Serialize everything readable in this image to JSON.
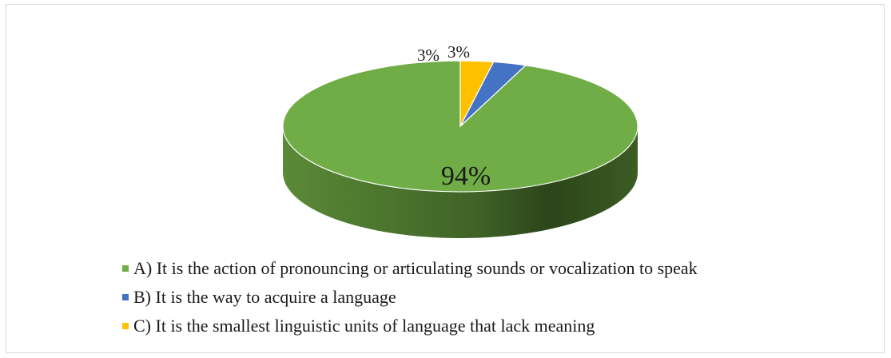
{
  "chart_data": {
    "type": "pie",
    "style": "3d",
    "categories": [
      "A) It is the action of pronouncing or articulating sounds or vocalization to speak",
      "B) It is the way to acquire a language",
      "C) It is the smallest linguistic units of language that lack meaning"
    ],
    "values": [
      94,
      3,
      3
    ],
    "labels": [
      "94%",
      "3%",
      "3%"
    ],
    "colors": [
      "#70ad47",
      "#4472c4",
      "#ffc000"
    ],
    "legend_position": "bottom"
  }
}
